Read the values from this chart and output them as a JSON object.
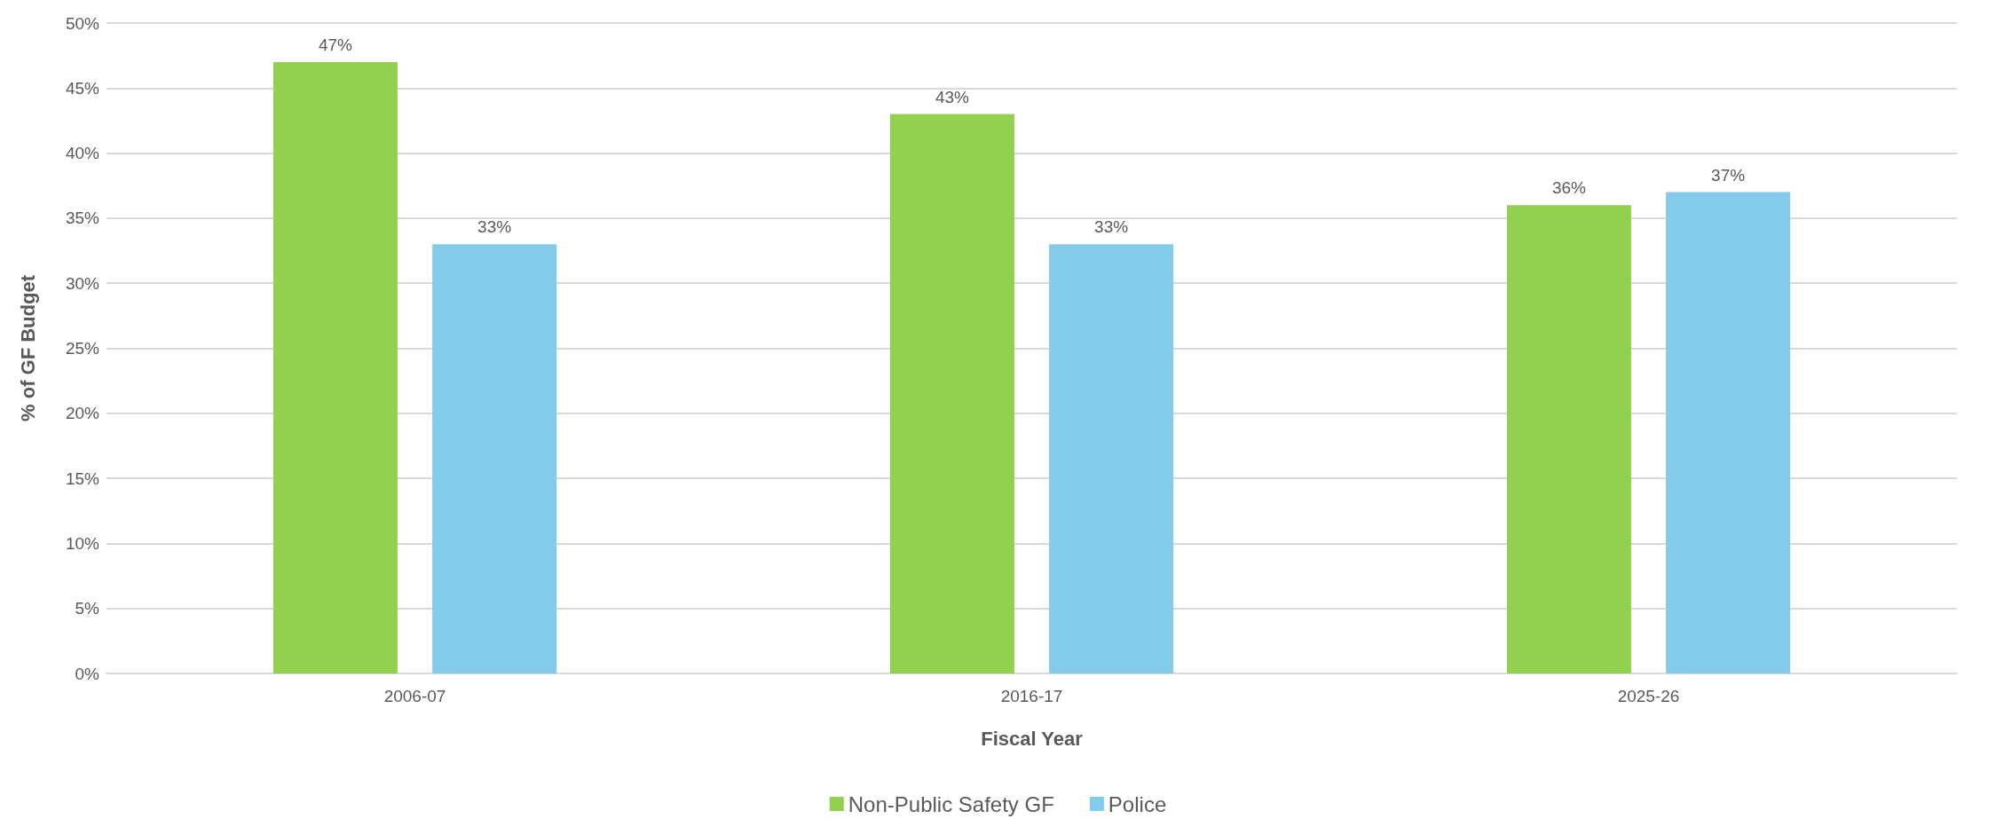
{
  "chart_data": {
    "type": "bar",
    "xlabel": "Fiscal Year",
    "ylabel": "% of GF Budget",
    "categories": [
      "2006-07",
      "2016-17",
      "2025-26"
    ],
    "series": [
      {
        "name": "Non-Public Safety GF",
        "color": "#92d050",
        "values": [
          47,
          43,
          36
        ],
        "value_labels": [
          "47%",
          "43%",
          "36%"
        ]
      },
      {
        "name": "Police",
        "color": "#83cbeb",
        "values": [
          33,
          33,
          37
        ],
        "value_labels": [
          "33%",
          "33%",
          "37%"
        ]
      }
    ],
    "ylim": [
      0,
      50
    ],
    "yticks": [
      {
        "value": 0,
        "label": "0%"
      },
      {
        "value": 5,
        "label": "5%"
      },
      {
        "value": 10,
        "label": "10%"
      },
      {
        "value": 15,
        "label": "15%"
      },
      {
        "value": 20,
        "label": "20%"
      },
      {
        "value": 25,
        "label": "25%"
      },
      {
        "value": 30,
        "label": "30%"
      },
      {
        "value": 35,
        "label": "35%"
      },
      {
        "value": 40,
        "label": "40%"
      },
      {
        "value": 45,
        "label": "45%"
      },
      {
        "value": 50,
        "label": "50%"
      }
    ],
    "grid": "y",
    "legend": "bottom"
  }
}
